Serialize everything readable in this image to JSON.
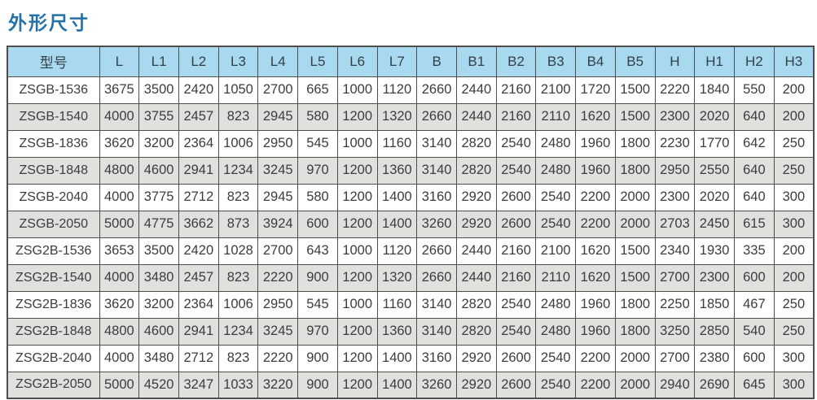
{
  "title": "外形尺寸",
  "colors": {
    "title_text": "#2471A8",
    "header_bg": "#A9D9EF",
    "row_alt_bg": "#E0E0DD",
    "border": "#4D4D4D",
    "cell_text": "#3C3C3C"
  },
  "table": {
    "columns": [
      "型号",
      "L",
      "L1",
      "L2",
      "L3",
      "L4",
      "L5",
      "L6",
      "L7",
      "B",
      "B1",
      "B2",
      "B3",
      "B4",
      "B5",
      "H",
      "H1",
      "H2",
      "H3"
    ],
    "rows": [
      {
        "model": "ZSGB-1536",
        "values": [
          3675,
          3500,
          2420,
          1050,
          2700,
          665,
          1000,
          1120,
          2660,
          2440,
          2160,
          2100,
          1720,
          1500,
          2220,
          1840,
          550,
          200
        ]
      },
      {
        "model": "ZSGB-1540",
        "values": [
          4000,
          3755,
          2457,
          823,
          2945,
          580,
          1200,
          1320,
          2660,
          2440,
          2160,
          2110,
          1620,
          1500,
          2300,
          2020,
          640,
          200
        ]
      },
      {
        "model": "ZSGB-1836",
        "values": [
          3620,
          3200,
          2364,
          1006,
          2950,
          545,
          1000,
          1160,
          3140,
          2820,
          2540,
          2480,
          1960,
          1800,
          2230,
          1770,
          642,
          250
        ]
      },
      {
        "model": "ZSGB-1848",
        "values": [
          4800,
          4600,
          2941,
          1234,
          3245,
          970,
          1200,
          1360,
          3140,
          2820,
          2540,
          2480,
          1960,
          1800,
          2950,
          2550,
          640,
          250
        ]
      },
      {
        "model": "ZSGB-2040",
        "values": [
          4000,
          3775,
          2712,
          823,
          2945,
          580,
          1200,
          1400,
          3160,
          2920,
          2600,
          2540,
          2200,
          2000,
          2300,
          2020,
          640,
          300
        ]
      },
      {
        "model": "ZSGB-2050",
        "values": [
          5000,
          4775,
          3662,
          873,
          3924,
          600,
          1200,
          1400,
          3260,
          2920,
          2600,
          2540,
          2200,
          2000,
          2703,
          2450,
          615,
          300
        ]
      },
      {
        "model": "ZSG2B-1536",
        "values": [
          3653,
          3500,
          2420,
          1028,
          2700,
          643,
          1000,
          1120,
          2660,
          2440,
          2160,
          2100,
          1620,
          1500,
          2340,
          1930,
          335,
          200
        ]
      },
      {
        "model": "ZSG2B-1540",
        "values": [
          4000,
          3480,
          2457,
          823,
          2220,
          900,
          1200,
          1320,
          2660,
          2440,
          2160,
          2110,
          1620,
          1500,
          2700,
          2300,
          600,
          200
        ]
      },
      {
        "model": "ZSG2B-1836",
        "values": [
          3620,
          3200,
          2364,
          1006,
          2950,
          545,
          1000,
          1160,
          3140,
          2820,
          2540,
          2480,
          1960,
          1800,
          2250,
          1850,
          467,
          250
        ]
      },
      {
        "model": "ZSG2B-1848",
        "values": [
          4800,
          4600,
          2941,
          1234,
          3245,
          970,
          1200,
          1360,
          3140,
          2820,
          2540,
          2480,
          1960,
          1800,
          3250,
          2850,
          540,
          250
        ]
      },
      {
        "model": "ZSG2B-2040",
        "values": [
          4000,
          3480,
          2712,
          823,
          2220,
          900,
          1200,
          1400,
          3160,
          2920,
          2600,
          2540,
          2200,
          2000,
          2700,
          2380,
          600,
          300
        ]
      },
      {
        "model": "ZSG2B-2050",
        "values": [
          5000,
          4520,
          3247,
          1033,
          3220,
          900,
          1200,
          1400,
          3260,
          2920,
          2600,
          2540,
          2200,
          2000,
          2940,
          2690,
          645,
          300
        ]
      }
    ]
  }
}
